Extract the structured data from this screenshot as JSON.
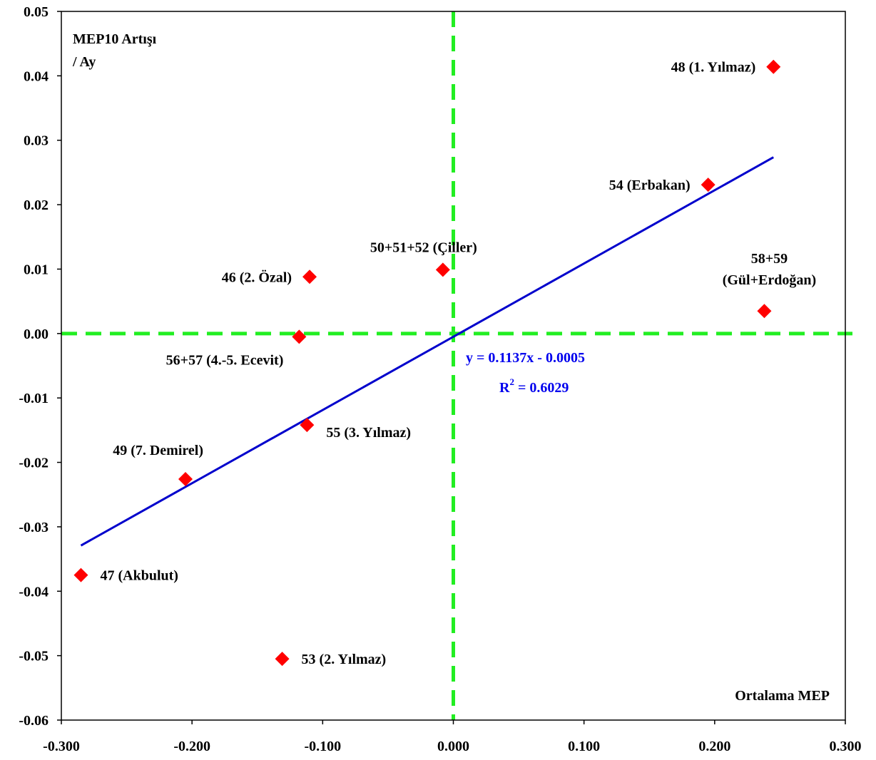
{
  "chart_data": {
    "type": "scatter",
    "xlim": [
      -0.3,
      0.3
    ],
    "ylim": [
      -0.06,
      0.05
    ],
    "x_ticks": [
      "-0.300",
      "-0.200",
      "-0.100",
      "0.000",
      "0.100",
      "0.200",
      "0.300"
    ],
    "y_ticks": [
      "0.05",
      "0.04",
      "0.03",
      "0.02",
      "0.01",
      "0.00",
      "-0.01",
      "-0.02",
      "-0.03",
      "-0.04",
      "-0.05",
      "-0.06"
    ],
    "ylabel_line1": "MEP10 Artışı",
    "ylabel_line2": "/ Ay",
    "xlabel": "Ortalama MEP",
    "points": [
      {
        "label": "48 (1. Yılmaz)",
        "x": 0.245,
        "y": 0.0414
      },
      {
        "label": "54 (Erbakan)",
        "x": 0.195,
        "y": 0.0231
      },
      {
        "label": "50+51+52 (Çiller)",
        "x": -0.008,
        "y": 0.0099
      },
      {
        "label": "46 (2. Özal)",
        "x": -0.11,
        "y": 0.0088
      },
      {
        "label": "58+59",
        "label2": "(Gül+Erdoğan)",
        "x": 0.238,
        "y": 0.0035
      },
      {
        "label": "56+57 (4.-5. Ecevit)",
        "x": -0.118,
        "y": -0.0005
      },
      {
        "label": "55 (3. Yılmaz)",
        "x": -0.112,
        "y": -0.0142
      },
      {
        "label": "49 (7. Demirel)",
        "x": -0.205,
        "y": -0.0226
      },
      {
        "label": "47 (Akbulut)",
        "x": -0.285,
        "y": -0.0375
      },
      {
        "label": "53 (2. Yılmaz)",
        "x": -0.131,
        "y": -0.0505
      }
    ],
    "trendline": {
      "slope": 0.1137,
      "intercept": -0.0005,
      "x_start": -0.285,
      "x_end": 0.245
    },
    "equation": "y = 0.1137x - 0.0005",
    "r2_label": "R",
    "r2_sup": "2",
    "r2_value": " = 0.6029",
    "colors": {
      "points": "#ff0000",
      "trendline": "#0000cc",
      "reference_lines": "#22ee22",
      "equation": "#0000ee"
    }
  }
}
